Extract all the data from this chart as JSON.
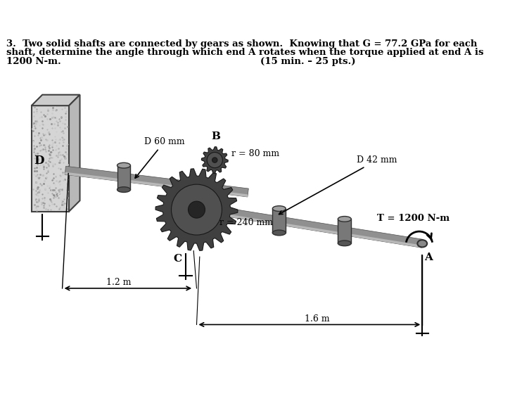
{
  "title_line1": "3.  Two solid shafts are connected by gears as shown.  Knowing that G = 77.2 GPa for each",
  "title_line2": "shaft, determine the angle through which end A rotates when the torque applied at end A is",
  "title_line3": "1200 N-m.",
  "title_right": "(15 min. – 25 pts.)",
  "label_D": "D",
  "label_B": "B",
  "label_C": "C",
  "label_A": "A",
  "label_d60": "D 60 mm",
  "label_r80": "r = 80 mm",
  "label_d42": "D 42 mm",
  "label_r240": "r = 240 mm",
  "label_T": "T = 1200 N-m",
  "label_12m": "1.2 m",
  "label_16m": "1.6 m",
  "bg_color": "#ffffff",
  "wall_face_color": "#d0d0d0",
  "wall_side_color": "#b8b8b8",
  "wall_top_color": "#e0e0e0",
  "shaft_color": "#909090",
  "shaft_dark": "#505050",
  "shaft_light": "#c0c0c0",
  "gear_color": "#383838",
  "gear_tooth_color": "#282828",
  "bearing_color": "#686868",
  "text_color": "#000000",
  "font_size_title": 9.5,
  "font_size_label": 9
}
